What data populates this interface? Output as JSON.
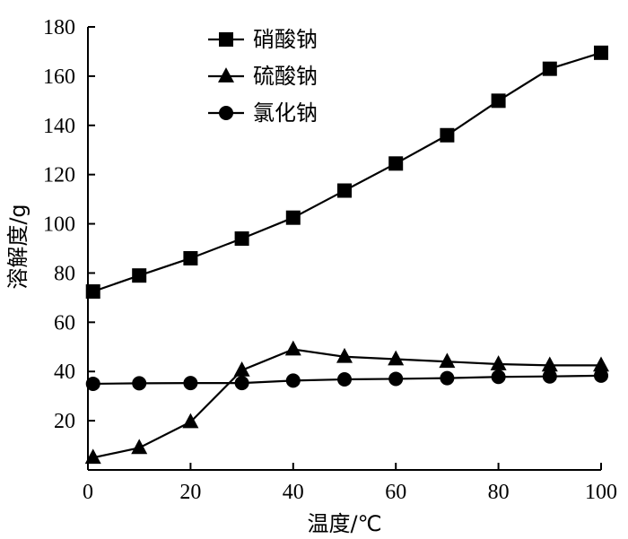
{
  "chart_data": {
    "type": "line",
    "xlabel": "温度/℃",
    "ylabel": "溶解度/g",
    "xlim": [
      0,
      100
    ],
    "ylim": [
      0,
      180
    ],
    "x_ticks": [
      "0",
      "20",
      "40",
      "60",
      "80",
      "100"
    ],
    "y_ticks": [
      "20",
      "40",
      "60",
      "80",
      "100",
      "120",
      "140",
      "160",
      "180"
    ],
    "legend_position": "top-center",
    "series": [
      {
        "name": "硝酸钠",
        "marker": "square",
        "x": [
          1,
          10,
          20,
          30,
          40,
          50,
          60,
          70,
          80,
          90,
          100
        ],
        "values": [
          72.5,
          79,
          86,
          94,
          102.5,
          113.5,
          124.5,
          136,
          150,
          163,
          169.5
        ]
      },
      {
        "name": "硫酸钠",
        "marker": "triangle",
        "x": [
          1,
          10,
          20,
          30,
          40,
          50,
          60,
          70,
          80,
          90,
          100
        ],
        "values": [
          5,
          9,
          19.5,
          40.5,
          49,
          46,
          45,
          44,
          43,
          42.5,
          42.5
        ]
      },
      {
        "name": "氯化钠",
        "marker": "circle",
        "x": [
          1,
          10,
          20,
          30,
          40,
          50,
          60,
          70,
          80,
          90,
          100
        ],
        "values": [
          35,
          35.2,
          35.3,
          35.3,
          36.3,
          36.8,
          37,
          37.3,
          37.8,
          38,
          38.3
        ]
      }
    ],
    "colors": {
      "ink": "#000000",
      "background": "#ffffff"
    }
  }
}
